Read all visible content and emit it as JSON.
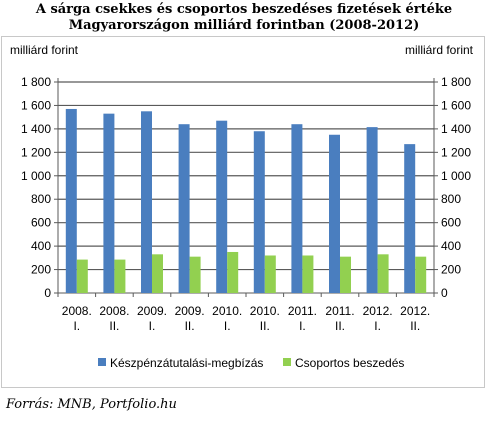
{
  "title_line1": "A sárga csekkes és csoportos beszedéses fizetések értéke",
  "title_line2": "Magyarországon milliárd forintban (2008-2012)",
  "source": "Forrás: MNB, Portfolio.hu",
  "chart_data": {
    "type": "bar",
    "title": "A sárga csekkes és csoportos beszedéses fizetések értéke Magyarországon milliárd forintban (2008-2012)",
    "ylabel_left": "milliárd forint",
    "ylabel_right": "milliárd forint",
    "ylim": [
      0,
      1800
    ],
    "yticks": [
      0,
      200,
      400,
      600,
      800,
      1000,
      1200,
      1400,
      1600,
      1800
    ],
    "ytick_labels": [
      "0",
      "200",
      "400",
      "600",
      "800",
      "1 000",
      "1 200",
      "1 400",
      "1 600",
      "1 800"
    ],
    "categories": [
      [
        "2008.",
        "I."
      ],
      [
        "2008.",
        "II."
      ],
      [
        "2009.",
        "I."
      ],
      [
        "2009.",
        "II."
      ],
      [
        "2010.",
        "I."
      ],
      [
        "2010.",
        "II."
      ],
      [
        "2011.",
        "I."
      ],
      [
        "2011.",
        "II."
      ],
      [
        "2012.",
        "I."
      ],
      [
        "2012.",
        "II."
      ]
    ],
    "series": [
      {
        "name": "Készpénzátutalási-megbízás",
        "color": "#4a7ebf",
        "values": [
          1570,
          1530,
          1550,
          1440,
          1470,
          1380,
          1440,
          1350,
          1415,
          1270
        ]
      },
      {
        "name": "Csoportos beszedés",
        "color": "#92d050",
        "values": [
          285,
          285,
          330,
          310,
          350,
          320,
          320,
          310,
          330,
          310
        ]
      }
    ],
    "grid": true,
    "legend_position": "bottom"
  }
}
